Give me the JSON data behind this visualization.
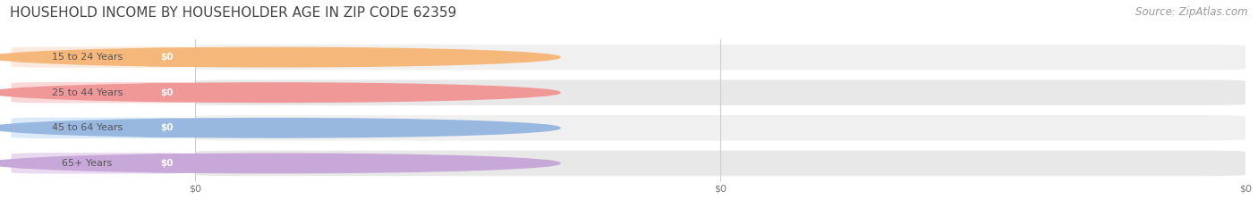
{
  "title": "HOUSEHOLD INCOME BY HOUSEHOLDER AGE IN ZIP CODE 62359",
  "source": "Source: ZipAtlas.com",
  "categories": [
    "15 to 24 Years",
    "25 to 44 Years",
    "45 to 64 Years",
    "65+ Years"
  ],
  "values": [
    0,
    0,
    0,
    0
  ],
  "bar_colors": [
    "#f5b87a",
    "#f09898",
    "#99b8e0",
    "#c8a8d8"
  ],
  "label_bg_colors": [
    "#faeade",
    "#fbd8d8",
    "#daeaf8",
    "#ead8f0"
  ],
  "row_bg_even": "#f0f0f0",
  "row_bg_odd": "#e8e8e8",
  "bar_label": "$0",
  "x_tick_labels": [
    "$0",
    "$0",
    "$0"
  ],
  "background_color": "#ffffff",
  "title_fontsize": 11,
  "source_fontsize": 8.5,
  "figsize": [
    14.06,
    2.33
  ],
  "dpi": 100
}
